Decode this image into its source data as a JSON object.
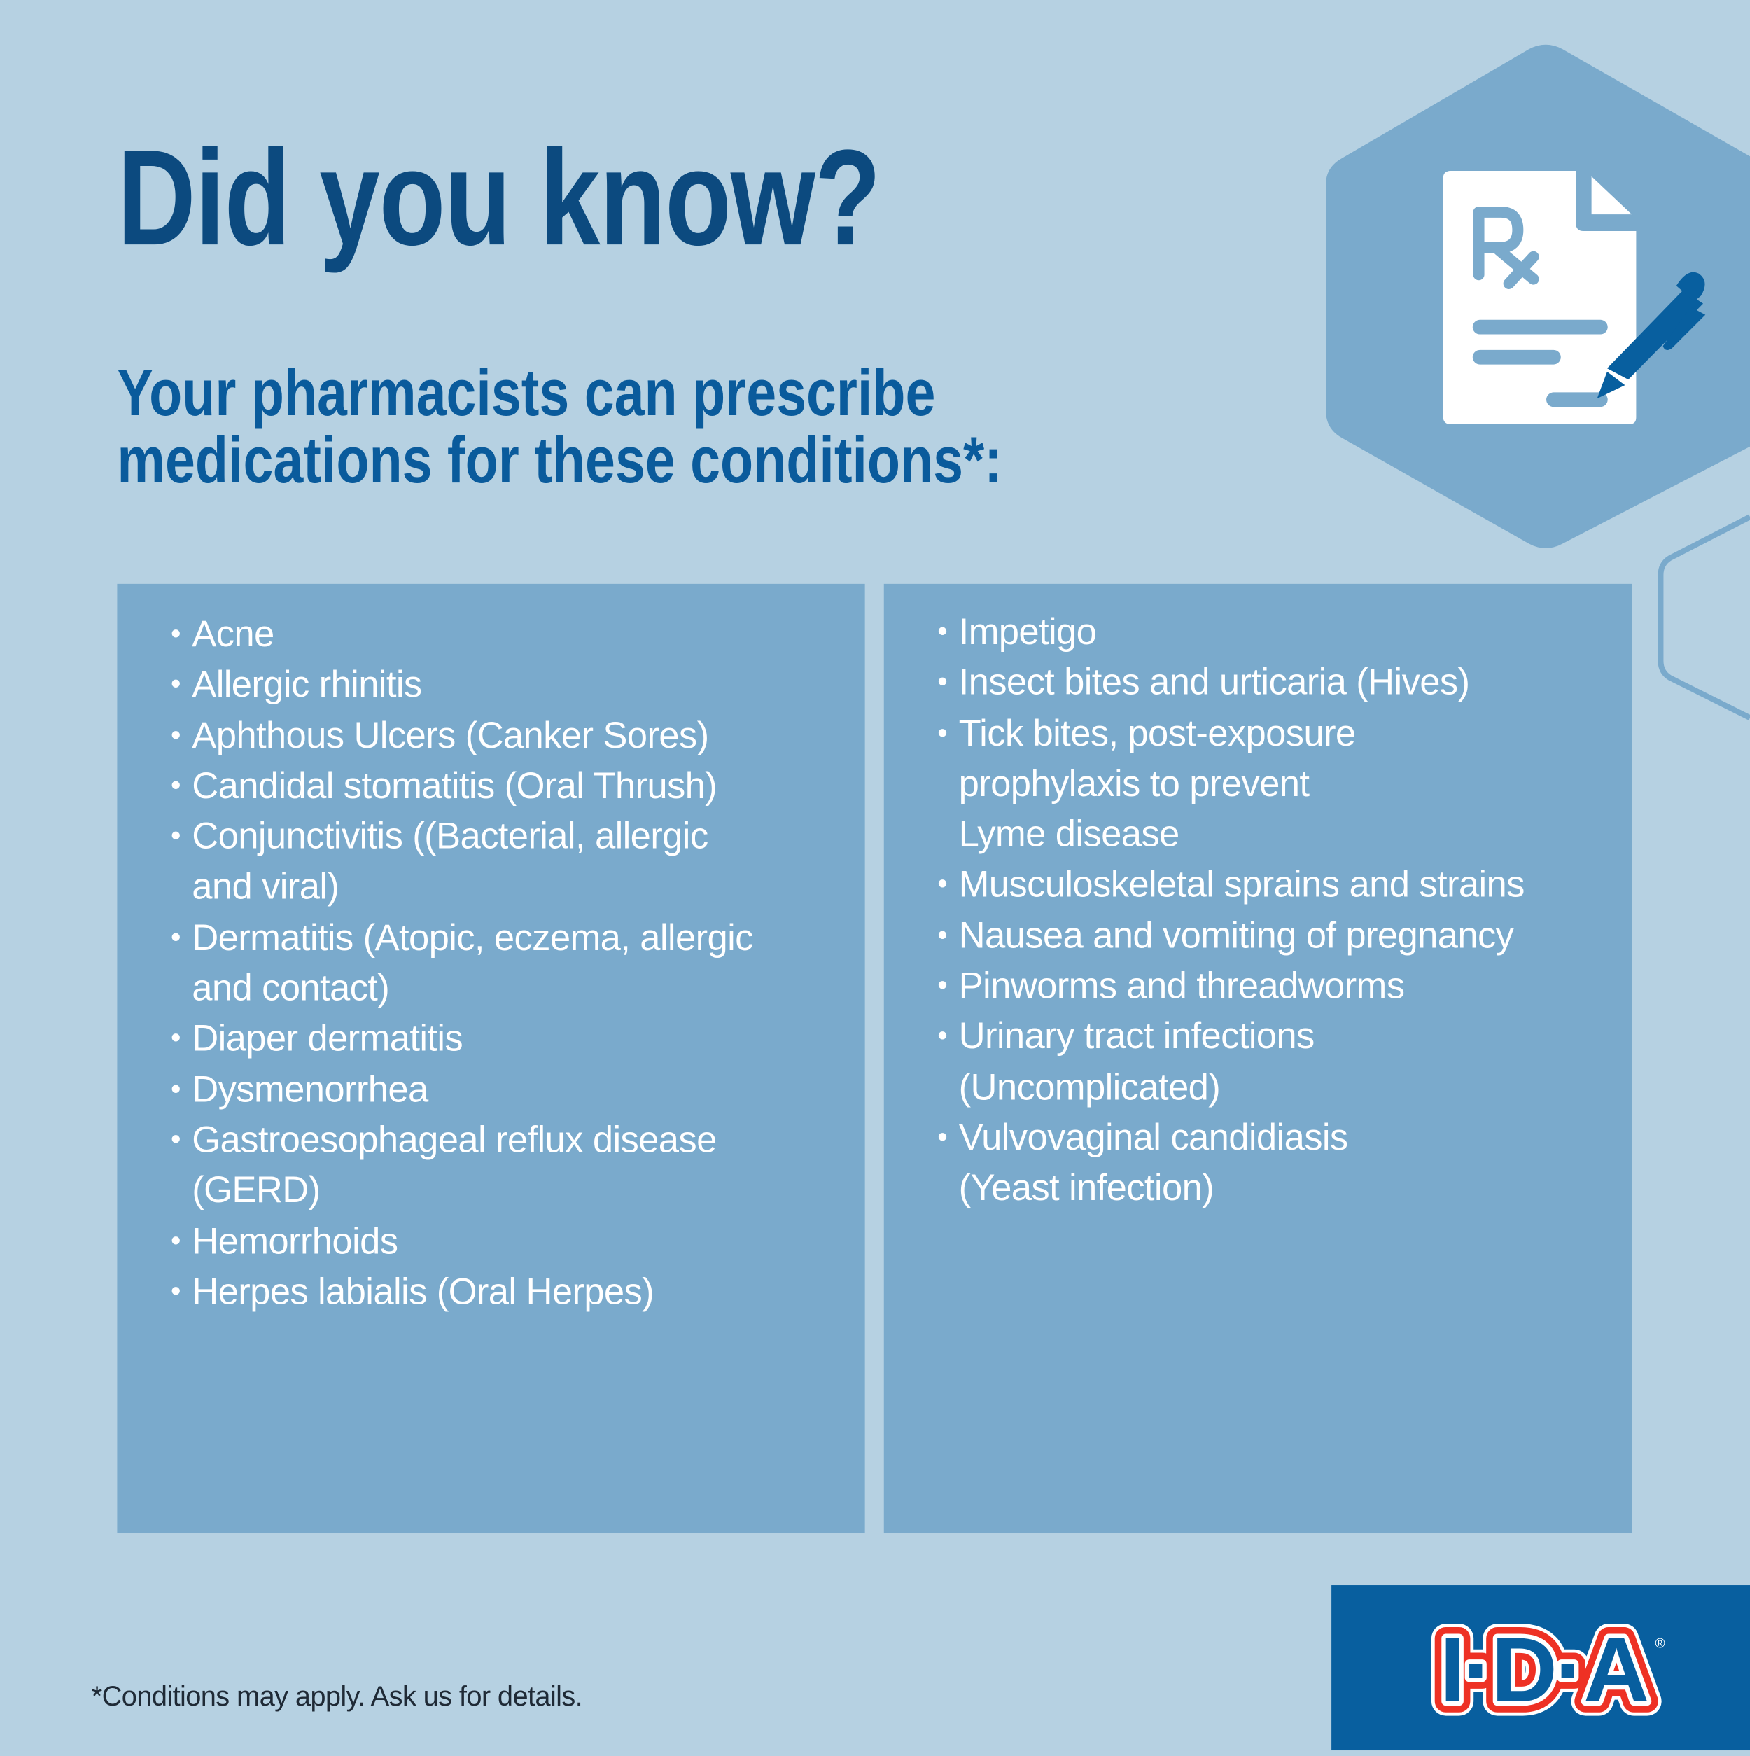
{
  "colors": {
    "background": "#b6d1e2",
    "panel": "#7aaacc",
    "title": "#0c4a7f",
    "subtitle": "#0a5b9c",
    "brand_blue": "#085f9f",
    "brand_red": "#ee3124"
  },
  "header": {
    "title": "Did you know?",
    "subtitle_line1": "Your pharmacists can prescribe",
    "subtitle_line2": "medications for these conditions*:"
  },
  "icon": "prescription-document-with-pen-icon",
  "conditions_left": [
    "Acne",
    "Allergic rhinitis",
    "Aphthous Ulcers (Canker Sores)",
    "Candidal stomatitis (Oral Thrush)",
    "Conjunctivitis ((Bacterial, allergic\nand viral)",
    "Dermatitis (Atopic, eczema, allergic\nand contact)",
    "Diaper dermatitis",
    "Dysmenorrhea",
    "Gastroesophageal reflux disease\n(GERD)",
    "Hemorrhoids",
    "Herpes labialis (Oral Herpes)"
  ],
  "conditions_right": [
    "Impetigo",
    "Insect bites and urticaria (Hives)",
    "Tick bites, post-exposure\nprophylaxis to prevent\nLyme disease",
    "Musculoskeletal sprains and strains",
    "Nausea and vomiting of pregnancy",
    "Pinworms and threadworms",
    "Urinary tract infections\n(Uncomplicated)",
    "Vulvovaginal candidiasis\n(Yeast infection)"
  ],
  "bullet": "•",
  "footnote": "*Conditions may apply. Ask us for details.",
  "logo": "I·D·A"
}
